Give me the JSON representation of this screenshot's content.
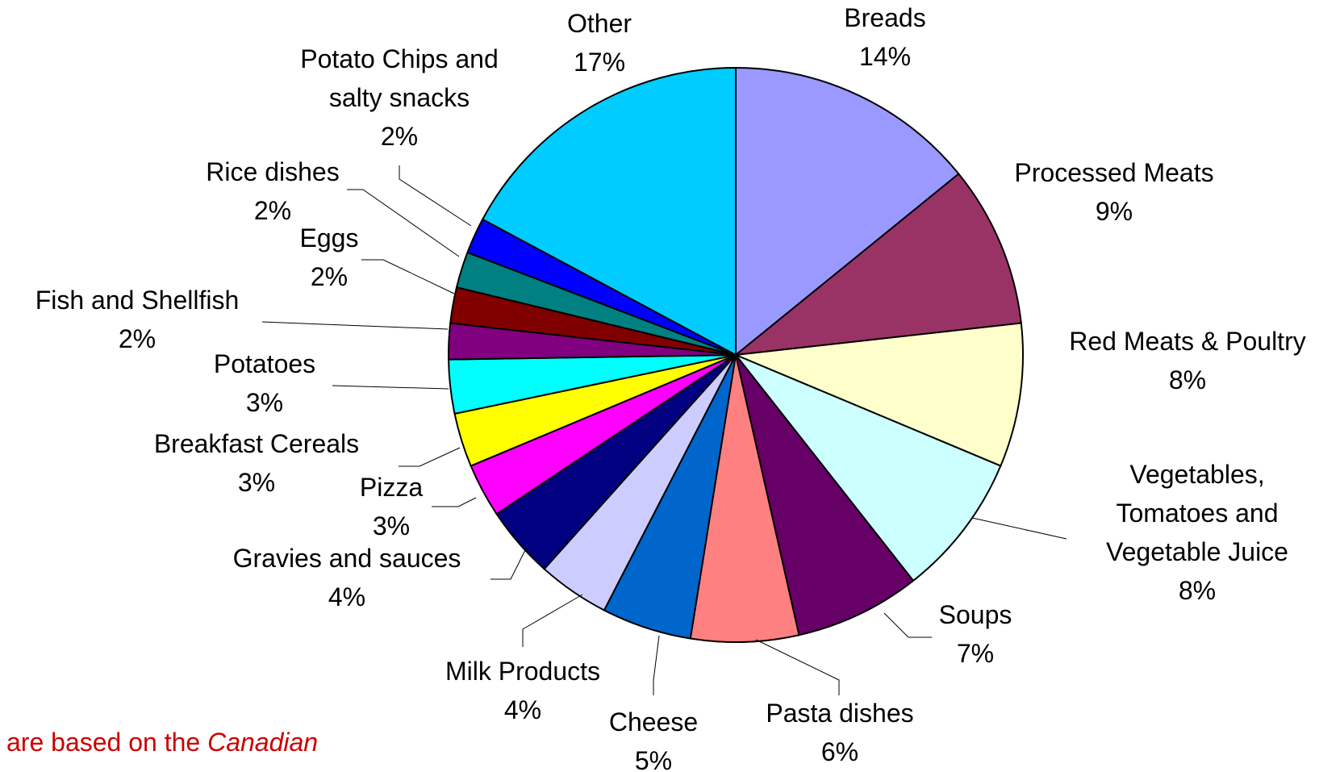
{
  "chart_data": {
    "type": "pie",
    "title": "",
    "slices": [
      {
        "name": "Breads",
        "label_lines": [
          "Breads"
        ],
        "value": 14,
        "pct_label": "14%",
        "color": "#9999ff"
      },
      {
        "name": "Processed Meats",
        "label_lines": [
          "Processed Meats"
        ],
        "value": 9,
        "pct_label": "9%",
        "color": "#993366"
      },
      {
        "name": "Red Meats & Poultry",
        "label_lines": [
          "Red Meats & Poultry"
        ],
        "value": 8,
        "pct_label": "8%",
        "color": "#ffffcc"
      },
      {
        "name": "Vegetables, Tomatoes and Vegetable Juice",
        "label_lines": [
          "Vegetables,",
          "Tomatoes and",
          "Vegetable Juice"
        ],
        "value": 8,
        "pct_label": "8%",
        "color": "#ccffff"
      },
      {
        "name": "Soups",
        "label_lines": [
          "Soups"
        ],
        "value": 7,
        "pct_label": "7%",
        "color": "#660066"
      },
      {
        "name": "Pasta dishes",
        "label_lines": [
          "Pasta dishes"
        ],
        "value": 6,
        "pct_label": "6%",
        "color": "#ff8080"
      },
      {
        "name": "Cheese",
        "label_lines": [
          "Cheese"
        ],
        "value": 5,
        "pct_label": "5%",
        "color": "#0066cc"
      },
      {
        "name": "Milk Products",
        "label_lines": [
          "Milk Products"
        ],
        "value": 4,
        "pct_label": "4%",
        "color": "#ccccff"
      },
      {
        "name": "Gravies and sauces",
        "label_lines": [
          "Gravies and sauces"
        ],
        "value": 4,
        "pct_label": "4%",
        "color": "#000080"
      },
      {
        "name": "Pizza",
        "label_lines": [
          "Pizza"
        ],
        "value": 3,
        "pct_label": "3%",
        "color": "#ff00ff"
      },
      {
        "name": "Breakfast Cereals",
        "label_lines": [
          "Breakfast Cereals"
        ],
        "value": 3,
        "pct_label": "3%",
        "color": "#ffff00"
      },
      {
        "name": "Potatoes",
        "label_lines": [
          "Potatoes"
        ],
        "value": 3,
        "pct_label": "3%",
        "color": "#00ffff"
      },
      {
        "name": "Fish and Shellfish",
        "label_lines": [
          "Fish and Shellfish"
        ],
        "value": 2,
        "pct_label": "2%",
        "color": "#800080"
      },
      {
        "name": "Eggs",
        "label_lines": [
          "Eggs"
        ],
        "value": 2,
        "pct_label": "2%",
        "color": "#800000"
      },
      {
        "name": "Rice dishes",
        "label_lines": [
          "Rice dishes"
        ],
        "value": 2,
        "pct_label": "2%",
        "color": "#008080"
      },
      {
        "name": "Potato Chips and salty snacks",
        "label_lines": [
          "Potato Chips and",
          "salty snacks"
        ],
        "value": 2,
        "pct_label": "2%",
        "color": "#0000ff"
      },
      {
        "name": "Other",
        "label_lines": [
          "Other"
        ],
        "value": 17,
        "pct_label": "17%",
        "color": "#00ccff"
      }
    ]
  },
  "footnote": {
    "text_prefix": "are based on the ",
    "text_italic": "Canadian"
  }
}
